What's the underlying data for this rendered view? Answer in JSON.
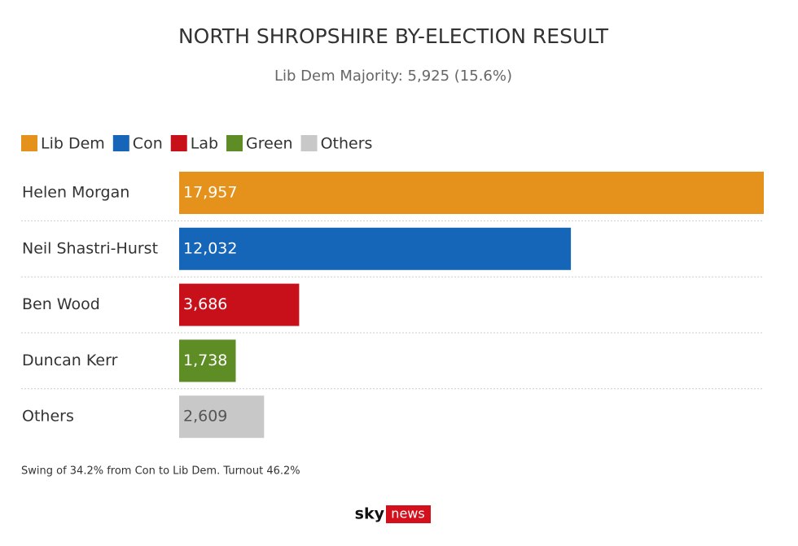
{
  "chart_data": {
    "type": "hbar",
    "title": "NORTH SHROPSHIRE BY-ELECTION RESULT",
    "subtitle": "Lib Dem Majority: 5,925 (15.6%)",
    "legend": [
      {
        "name": "Lib Dem",
        "color": "#e4921c"
      },
      {
        "name": "Con",
        "color": "#1565b8"
      },
      {
        "name": "Lab",
        "color": "#c8101b"
      },
      {
        "name": "Green",
        "color": "#5e8d26"
      },
      {
        "name": "Others",
        "color": "#c8c8c8"
      }
    ],
    "categories": [
      "Helen Morgan",
      "Neil Shastri-Hurst",
      "Ben Wood",
      "Duncan Kerr",
      "Others"
    ],
    "values": [
      17957,
      12032,
      3686,
      1738,
      2609
    ],
    "value_labels": [
      "17,957",
      "12,032",
      "3,686",
      "1,738",
      "2,609"
    ],
    "colors": [
      "#e4921c",
      "#1565b8",
      "#c8101b",
      "#5e8d26",
      "#c8c8c8"
    ],
    "note": "Swing of 34.2% from Con to Lib Dem. Turnout 46.2%",
    "logo": {
      "brand": "sky",
      "label": "news"
    }
  }
}
